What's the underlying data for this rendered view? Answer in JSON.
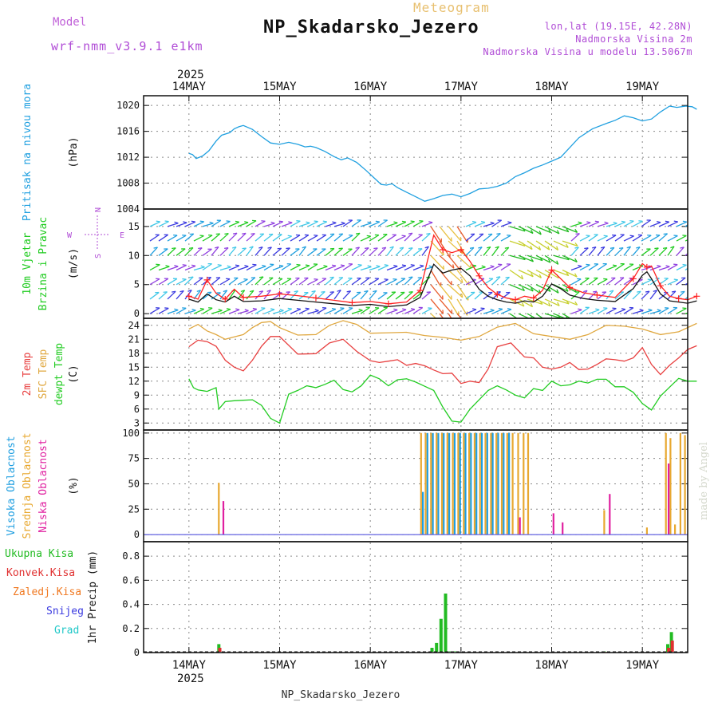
{
  "header": {
    "model_label": "Model",
    "model_name": "wrf-nmm_v3.9.1 e1km",
    "meteogram_label": "Meteogram",
    "station_title": "NP_Skadarsko_Jezero",
    "location": "lon,lat (19.15E, 42.28N)",
    "altitude": "Nadmorska Visina 2m",
    "model_altitude": "Nadmorska Visina u modelu 13.5067m"
  },
  "footer": {
    "station": "NP_Skadarsko_Jezero",
    "credit": "made by Angel"
  },
  "chart_data": [
    {
      "type": "line",
      "ylabel": "(hPa)",
      "side_labels": [
        "Pritisak na nivou mora"
      ],
      "yticks": [
        1004,
        1008,
        1012,
        1016,
        1020
      ],
      "ylim": [
        1004,
        1021.5
      ],
      "top_year": "2025",
      "date_ticks": [
        "14MAY",
        "15MAY",
        "16MAY",
        "17MAY",
        "18MAY",
        "19MAY"
      ],
      "series": [
        {
          "color": "#20a0e0",
          "x": [
            0.0,
            0.04,
            0.08,
            0.15,
            0.22,
            0.3,
            0.36,
            0.45,
            0.5,
            0.55,
            0.6,
            0.7,
            0.8,
            0.9,
            1.0,
            1.1,
            1.2,
            1.28,
            1.34,
            1.4,
            1.5,
            1.6,
            1.68,
            1.75,
            1.85,
            1.95,
            2.05,
            2.12,
            2.18,
            2.24,
            2.3,
            2.4,
            2.5,
            2.6,
            2.7,
            2.8,
            2.9,
            3.0,
            3.1,
            3.2,
            3.3,
            3.4,
            3.5,
            3.6,
            3.7,
            3.8,
            3.9,
            4.0,
            4.1,
            4.2,
            4.3,
            4.45,
            4.6,
            4.7,
            4.8,
            4.9,
            5.0,
            5.1,
            5.2,
            5.3,
            5.38,
            5.48,
            5.55,
            5.6
          ],
          "values": [
            1012.6,
            1012.4,
            1011.8,
            1012.2,
            1013.0,
            1014.5,
            1015.4,
            1015.8,
            1016.4,
            1016.7,
            1016.9,
            1016.3,
            1015.2,
            1014.2,
            1014.0,
            1014.3,
            1014.0,
            1013.6,
            1013.7,
            1013.5,
            1012.9,
            1012.1,
            1011.6,
            1011.9,
            1011.2,
            1010.0,
            1008.7,
            1007.8,
            1007.7,
            1007.9,
            1007.3,
            1006.6,
            1005.9,
            1005.2,
            1005.6,
            1006.1,
            1006.3,
            1005.9,
            1006.4,
            1007.1,
            1007.2,
            1007.5,
            1008.0,
            1009.0,
            1009.6,
            1010.3,
            1010.8,
            1011.4,
            1012.0,
            1013.5,
            1015.0,
            1016.4,
            1017.2,
            1017.7,
            1018.4,
            1018.1,
            1017.6,
            1017.9,
            1019.0,
            1019.9,
            1019.7,
            1019.9,
            1019.8,
            1019.4
          ]
        }
      ]
    },
    {
      "type": "line",
      "ylabel": "(m/s)",
      "side_labels": [
        "10m Vjetar",
        "Brzina i Pravac"
      ],
      "compass_labels": {
        "north": "N",
        "south": "S",
        "west": "W",
        "east": "E"
      },
      "yticks": [
        0,
        5,
        10,
        15
      ],
      "ylim": [
        -0.8,
        18
      ],
      "series": [
        {
          "color": "#111111",
          "x": [
            0.0,
            0.1,
            0.2,
            0.3,
            0.4,
            0.5,
            0.6,
            0.8,
            1.0,
            1.2,
            1.4,
            1.6,
            1.8,
            2.0,
            2.2,
            2.4,
            2.55,
            2.7,
            2.8,
            2.9,
            3.0,
            3.1,
            3.2,
            3.3,
            3.4,
            3.5,
            3.6,
            3.7,
            3.8,
            3.9,
            4.0,
            4.1,
            4.2,
            4.35,
            4.5,
            4.7,
            4.9,
            5.0,
            5.05,
            5.1,
            5.2,
            5.3,
            5.4,
            5.5,
            5.6
          ],
          "values": [
            2.5,
            2.0,
            3.4,
            2.4,
            2.0,
            3.0,
            2.1,
            2.2,
            2.6,
            2.3,
            2.0,
            1.7,
            1.4,
            1.6,
            1.2,
            1.5,
            2.8,
            8.5,
            7.0,
            7.5,
            7.8,
            6.5,
            4.2,
            3.0,
            2.4,
            2.0,
            1.8,
            2.2,
            2.0,
            3.0,
            5.1,
            4.3,
            3.2,
            2.6,
            2.3,
            2.1,
            4.3,
            6.6,
            7.2,
            6.0,
            3.4,
            2.2,
            2.0,
            1.8,
            2.2
          ]
        },
        {
          "color": "#ff2020",
          "x": [
            0.0,
            0.1,
            0.2,
            0.3,
            0.4,
            0.5,
            0.6,
            0.8,
            1.0,
            1.2,
            1.4,
            1.6,
            1.8,
            2.0,
            2.2,
            2.4,
            2.55,
            2.7,
            2.8,
            2.9,
            3.0,
            3.1,
            3.2,
            3.3,
            3.4,
            3.5,
            3.6,
            3.7,
            3.8,
            3.9,
            4.0,
            4.1,
            4.2,
            4.35,
            4.5,
            4.7,
            4.9,
            5.0,
            5.05,
            5.1,
            5.2,
            5.3,
            5.4,
            5.5,
            5.6
          ],
          "values": [
            3.0,
            2.5,
            5.8,
            3.5,
            2.5,
            4.2,
            2.8,
            3.0,
            3.4,
            3.1,
            2.7,
            2.3,
            1.9,
            2.1,
            1.7,
            2.0,
            4.0,
            13.5,
            11.0,
            10.5,
            11.0,
            9.0,
            6.5,
            4.5,
            3.3,
            2.7,
            2.4,
            3.0,
            2.7,
            4.0,
            7.5,
            6.0,
            4.5,
            3.6,
            3.2,
            2.8,
            6.0,
            8.6,
            8.0,
            8.2,
            4.8,
            3.0,
            2.6,
            2.4,
            3.0
          ]
        }
      ]
    },
    {
      "type": "line",
      "ylabel": "(C)",
      "side_labels": [
        "2m Temp",
        "SFC Temp",
        "dewpt Temp"
      ],
      "yticks": [
        3,
        6,
        9,
        12,
        15,
        18,
        21,
        24
      ],
      "ylim": [
        1.5,
        25.5
      ],
      "series": [
        {
          "color": "#e84040",
          "x": [
            0.0,
            0.1,
            0.2,
            0.3,
            0.4,
            0.5,
            0.6,
            0.7,
            0.8,
            0.9,
            1.0,
            1.2,
            1.4,
            1.55,
            1.7,
            1.85,
            2.0,
            2.1,
            2.2,
            2.3,
            2.4,
            2.5,
            2.6,
            2.7,
            2.8,
            2.9,
            3.0,
            3.1,
            3.2,
            3.3,
            3.4,
            3.55,
            3.7,
            3.8,
            3.9,
            4.0,
            4.1,
            4.2,
            4.3,
            4.4,
            4.5,
            4.6,
            4.7,
            4.8,
            4.9,
            5.0,
            5.1,
            5.2,
            5.3,
            5.4,
            5.5,
            5.6
          ],
          "values": [
            19.4,
            20.8,
            20.5,
            19.5,
            16.5,
            15.0,
            14.2,
            16.5,
            19.5,
            21.6,
            21.6,
            17.8,
            17.9,
            20.2,
            21.0,
            18.4,
            16.4,
            16.0,
            16.3,
            16.6,
            15.4,
            15.8,
            15.3,
            14.4,
            13.6,
            13.7,
            11.5,
            12.0,
            11.7,
            14.6,
            19.4,
            20.2,
            17.2,
            17.0,
            15.0,
            14.6,
            15.0,
            16.0,
            14.5,
            14.6,
            15.6,
            16.8,
            16.6,
            16.3,
            17.0,
            19.2,
            15.6,
            13.4,
            15.4,
            17.0,
            18.8,
            19.6
          ]
        },
        {
          "color": "#e0a840",
          "x": [
            0.0,
            0.1,
            0.2,
            0.3,
            0.4,
            0.5,
            0.6,
            0.7,
            0.8,
            0.9,
            1.0,
            1.2,
            1.4,
            1.55,
            1.7,
            1.85,
            2.0,
            2.2,
            2.4,
            2.6,
            2.8,
            3.0,
            3.2,
            3.4,
            3.6,
            3.8,
            4.0,
            4.2,
            4.4,
            4.6,
            4.8,
            5.0,
            5.2,
            5.4,
            5.6
          ],
          "values": [
            23.2,
            24.2,
            22.8,
            22.0,
            21.0,
            21.5,
            22.0,
            23.5,
            24.6,
            24.8,
            23.5,
            21.9,
            22.0,
            24.0,
            25.0,
            24.2,
            22.3,
            22.4,
            22.5,
            21.8,
            21.4,
            20.8,
            21.6,
            23.6,
            24.4,
            22.2,
            21.6,
            21.0,
            22.0,
            24.0,
            23.8,
            23.2,
            22.0,
            22.6,
            24.4
          ]
        },
        {
          "color": "#22cc22",
          "x": [
            0.0,
            0.05,
            0.1,
            0.2,
            0.3,
            0.33,
            0.4,
            0.5,
            0.6,
            0.7,
            0.8,
            0.9,
            1.0,
            1.1,
            1.2,
            1.3,
            1.4,
            1.5,
            1.6,
            1.7,
            1.8,
            1.9,
            2.0,
            2.1,
            2.2,
            2.3,
            2.4,
            2.5,
            2.6,
            2.7,
            2.8,
            2.9,
            3.0,
            3.1,
            3.2,
            3.3,
            3.4,
            3.5,
            3.6,
            3.7,
            3.8,
            3.9,
            4.0,
            4.1,
            4.2,
            4.3,
            4.4,
            4.5,
            4.6,
            4.7,
            4.8,
            4.9,
            5.0,
            5.1,
            5.2,
            5.3,
            5.4,
            5.5,
            5.6
          ],
          "values": [
            12.5,
            10.6,
            10.1,
            9.8,
            10.6,
            6.0,
            7.6,
            7.8,
            7.9,
            8.0,
            6.8,
            4.0,
            3.0,
            9.2,
            10.0,
            11.0,
            10.6,
            11.3,
            12.2,
            10.2,
            9.7,
            11.0,
            13.3,
            12.5,
            11.0,
            12.3,
            12.5,
            11.8,
            10.9,
            10.0,
            6.4,
            3.4,
            3.2,
            6.0,
            8.0,
            10.0,
            11.0,
            10.1,
            9.0,
            8.4,
            10.4,
            10.0,
            12.0,
            11.0,
            11.2,
            12.0,
            11.6,
            12.4,
            12.4,
            10.8,
            10.8,
            9.6,
            7.2,
            5.8,
            8.8,
            10.7,
            12.6,
            12.0,
            12.0
          ]
        }
      ]
    },
    {
      "type": "bar",
      "ylabel": "(%)",
      "side_labels": [
        "Visoka Oblacnost",
        "Srednja Oblacnost",
        "Niska Oblacnost"
      ],
      "yticks": [
        0,
        25,
        50,
        75,
        100
      ],
      "ylim": [
        -7,
        103
      ],
      "series": [
        {
          "color": "#1e9ee0",
          "x": [
            2.58,
            2.63,
            2.69,
            2.75,
            2.81,
            2.87,
            2.93,
            2.99,
            3.05,
            3.11,
            3.17,
            3.23,
            3.29,
            3.35,
            3.41,
            3.47,
            3.53
          ],
          "values": [
            42,
            100,
            100,
            100,
            100,
            100,
            100,
            100,
            100,
            100,
            100,
            100,
            100,
            100,
            100,
            100,
            100
          ]
        },
        {
          "color": "#e8a830",
          "x": [
            0.33,
            2.56,
            2.61,
            2.67,
            2.73,
            2.79,
            2.85,
            2.91,
            2.97,
            3.03,
            3.09,
            3.15,
            3.21,
            3.27,
            3.33,
            3.39,
            3.45,
            3.51,
            3.57,
            3.63,
            3.69,
            3.74,
            4.58,
            5.05,
            5.26,
            5.31,
            5.36,
            5.42,
            5.47
          ],
          "values": [
            51,
            100,
            100,
            100,
            100,
            100,
            100,
            100,
            100,
            100,
            100,
            100,
            100,
            100,
            100,
            100,
            100,
            100,
            100,
            100,
            100,
            100,
            24,
            7,
            100,
            95,
            10,
            100,
            98
          ]
        },
        {
          "color": "#e020a0",
          "x": [
            0.38,
            3.65,
            4.02,
            4.12,
            4.64,
            5.29
          ],
          "values": [
            33,
            17,
            21,
            12,
            40,
            70
          ]
        }
      ]
    },
    {
      "type": "bar",
      "ylabel": "1hr Precip (mm)",
      "legend": [
        {
          "label": "Ukupna Kisa",
          "color": "#22bb22"
        },
        {
          "label": "Konvek.Kisa",
          "color": "#e03030"
        },
        {
          "label": "Zaledj.Kisa",
          "color": "#f07820"
        },
        {
          "label": "Snijeg",
          "color": "#3a3ae0"
        },
        {
          "label": "Grad",
          "color": "#20c8c8"
        }
      ],
      "yticks": [
        0,
        0.2,
        0.4,
        0.6,
        0.8
      ],
      "ylim": [
        0,
        0.92
      ],
      "bottom_year": "2025",
      "date_ticks": [
        "14MAY",
        "15MAY",
        "16MAY",
        "17MAY",
        "18MAY",
        "19MAY"
      ],
      "series": [
        {
          "color": "#22bb22",
          "x": [
            0.33,
            2.35,
            2.68,
            2.73,
            2.78,
            2.83,
            2.88,
            2.93,
            4.58,
            5.28,
            5.32
          ],
          "values": [
            0.07,
            0.01,
            0.04,
            0.08,
            0.28,
            0.49,
            0.01,
            0.01,
            0.01,
            0.07,
            0.17
          ]
        },
        {
          "color": "#e03030",
          "x": [
            0.34,
            4.59,
            5.29,
            5.33
          ],
          "values": [
            0.04,
            0.005,
            0.04,
            0.1
          ]
        }
      ]
    }
  ]
}
